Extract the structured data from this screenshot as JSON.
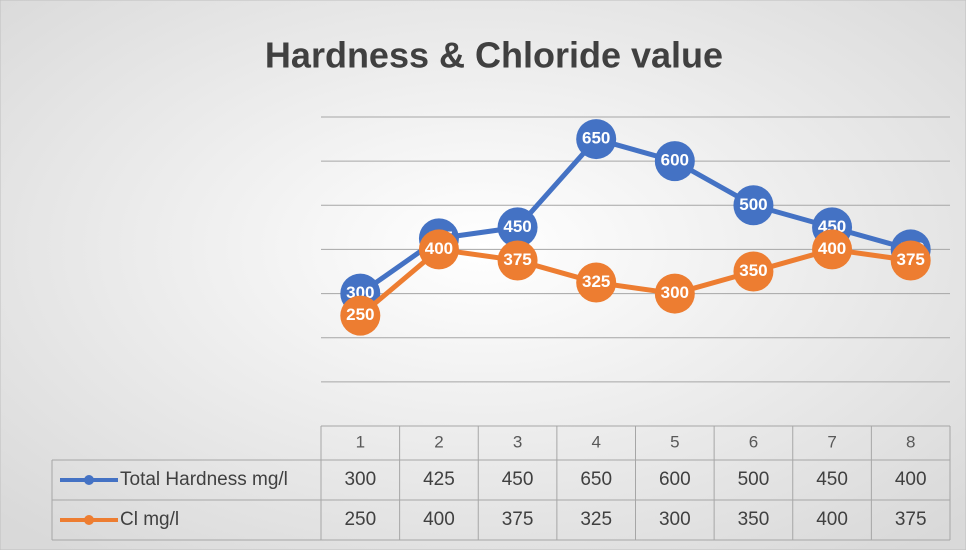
{
  "chart_data": {
    "type": "line",
    "title": "Hardness & Chloride value",
    "categories": [
      1,
      2,
      3,
      4,
      5,
      6,
      7,
      8
    ],
    "series": [
      {
        "name": "Total Hardness mg/l",
        "color": "#4472c4",
        "values": [
          300,
          425,
          450,
          650,
          600,
          500,
          450,
          400
        ]
      },
      {
        "name": "Cl mg/l",
        "color": "#ed7d31",
        "values": [
          250,
          400,
          375,
          325,
          300,
          350,
          400,
          375
        ]
      }
    ],
    "ylim": [
      0,
      700
    ],
    "yticks": [
      0,
      100,
      200,
      300,
      400,
      500,
      600,
      700
    ],
    "grid": true
  }
}
